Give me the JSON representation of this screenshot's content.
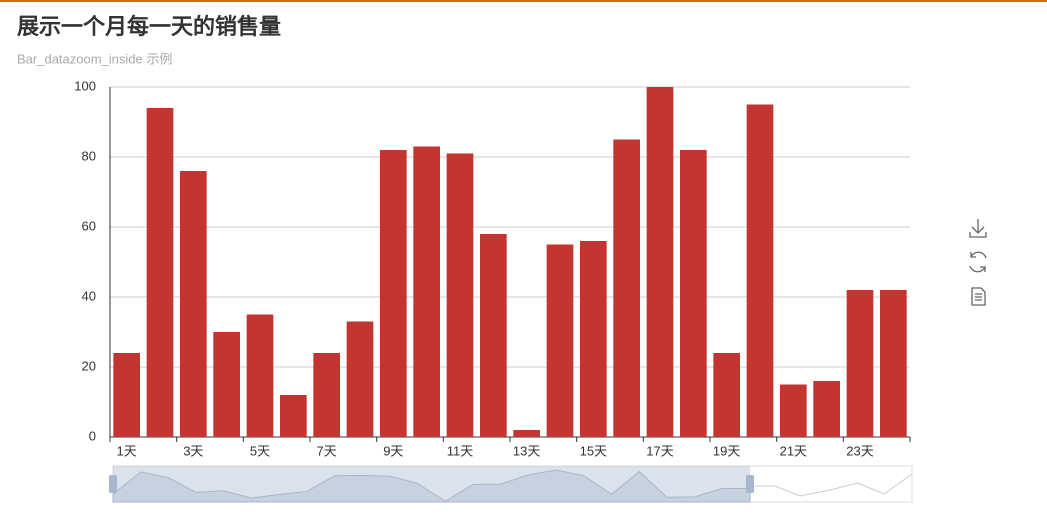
{
  "chart_data": {
    "type": "bar",
    "title": "展示一个月每一天的销售量",
    "subtitle": "Bar_datazoom_inside 示例",
    "categories": [
      "1天",
      null,
      "3天",
      null,
      "5天",
      null,
      "7天",
      null,
      "9天",
      null,
      "11天",
      null,
      "13天",
      null,
      "15天",
      null,
      "17天",
      null,
      "19天",
      null,
      "21天",
      null,
      "23天",
      null
    ],
    "values": [
      24,
      94,
      76,
      30,
      35,
      12,
      24,
      33,
      82,
      83,
      81,
      58,
      2,
      55,
      56,
      85,
      100,
      82,
      24,
      95,
      15,
      16,
      42,
      42
    ],
    "color": "#c23531",
    "ylim": [
      0,
      100
    ],
    "yticks": [
      0,
      20,
      40,
      60,
      80,
      100
    ],
    "grid": true
  }
}
